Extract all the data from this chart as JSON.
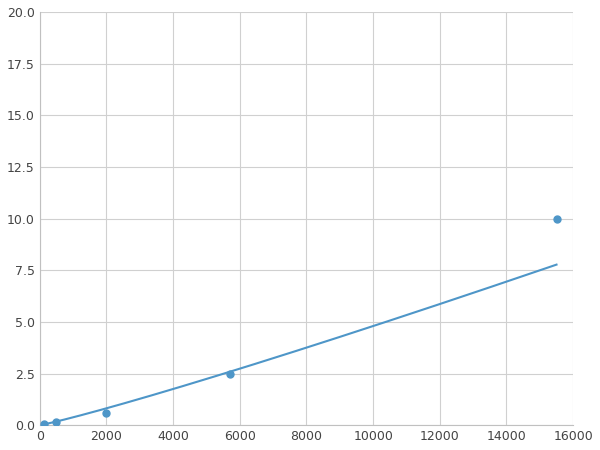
{
  "x": [
    125,
    500,
    2000,
    5700,
    15500
  ],
  "y": [
    0.05,
    0.15,
    0.6,
    2.5,
    10.0
  ],
  "line_color": "#4e96c8",
  "marker_color": "#4e96c8",
  "marker_size": 5,
  "xlim": [
    0,
    16000
  ],
  "ylim": [
    0,
    20.0
  ],
  "xticks": [
    0,
    2000,
    4000,
    6000,
    8000,
    10000,
    12000,
    14000,
    16000
  ],
  "yticks": [
    0.0,
    2.5,
    5.0,
    7.5,
    10.0,
    12.5,
    15.0,
    17.5,
    20.0
  ],
  "grid": true,
  "background_color": "#ffffff",
  "figsize": [
    6.0,
    4.5
  ],
  "dpi": 100
}
